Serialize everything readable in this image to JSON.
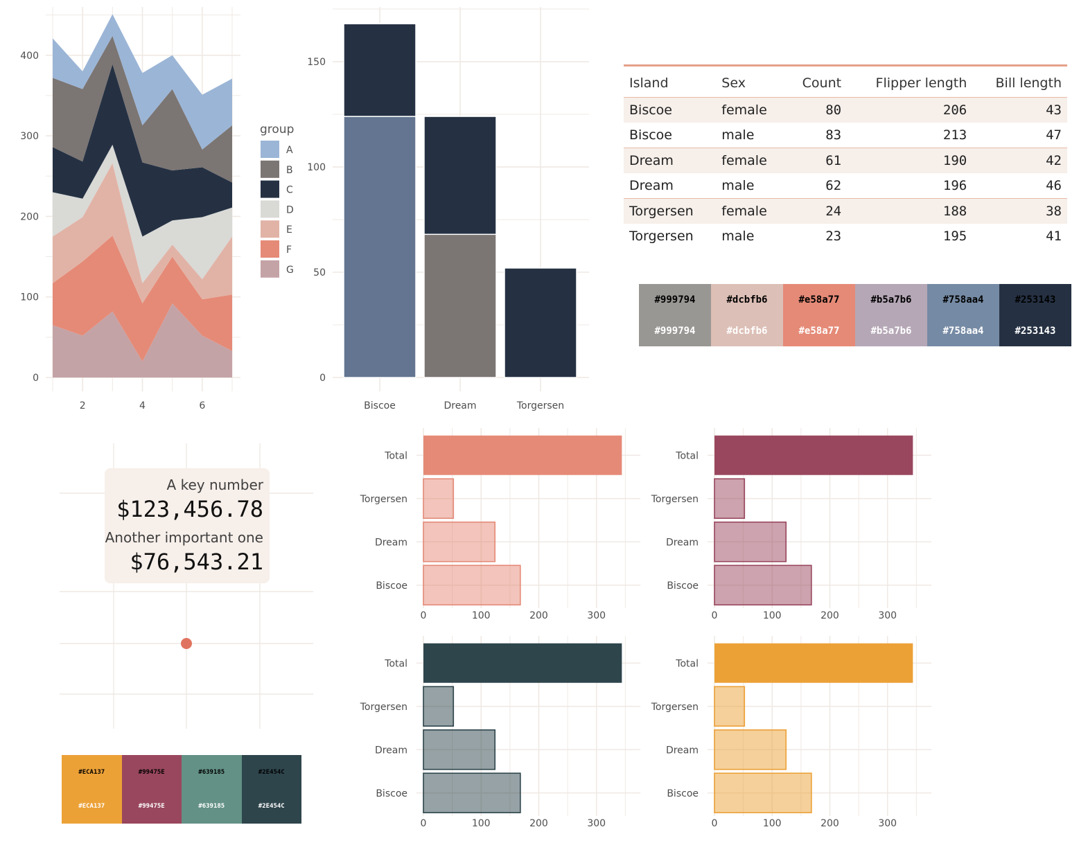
{
  "chart_data": [
    {
      "type": "area",
      "stacked": true,
      "x": [
        1,
        2,
        3,
        4,
        5,
        6,
        7
      ],
      "xticks": [
        2,
        4,
        6
      ],
      "yticks": [
        0,
        100,
        200,
        300,
        400
      ],
      "ylim": [
        0,
        460
      ],
      "legend": {
        "title": "group",
        "position": "right"
      },
      "series": [
        {
          "name": "G",
          "color": "#c4a3a6",
          "values": [
            65,
            52,
            82,
            20,
            92,
            52,
            33
          ]
        },
        {
          "name": "F",
          "color": "#e58a77",
          "values": [
            52,
            92,
            94,
            72,
            58,
            45,
            70
          ]
        },
        {
          "name": "E",
          "color": "#e1b3a6",
          "values": [
            58,
            55,
            90,
            25,
            15,
            25,
            72
          ]
        },
        {
          "name": "D",
          "color": "#d9d9d6",
          "values": [
            55,
            23,
            23,
            58,
            30,
            77,
            36
          ]
        },
        {
          "name": "C",
          "color": "#253143",
          "values": [
            56,
            46,
            100,
            92,
            62,
            62,
            31
          ]
        },
        {
          "name": "B",
          "color": "#7b7573",
          "values": [
            86,
            90,
            35,
            46,
            101,
            22,
            71
          ]
        },
        {
          "name": "A",
          "color": "#9bb5d6",
          "values": [
            49,
            22,
            27,
            65,
            42,
            68,
            58
          ]
        }
      ]
    },
    {
      "type": "bar",
      "stacked": true,
      "categories": [
        "Biscoe",
        "Dream",
        "Torgersen"
      ],
      "yticks": [
        0,
        50,
        100,
        150
      ],
      "ylim": [
        0,
        176
      ],
      "series": [
        {
          "color": "#637590",
          "values": [
            124,
            0,
            0
          ]
        },
        {
          "color": "#7b7573",
          "values": [
            0,
            68,
            0
          ]
        },
        {
          "color": "#253143",
          "values": [
            44,
            56,
            52
          ]
        }
      ]
    },
    {
      "type": "scatter",
      "points": [
        {
          "x": 0,
          "y": 0,
          "color": "#e0735f"
        }
      ],
      "annotations": [
        "A key number",
        "$123,456.78",
        "Another important one",
        "$76,543.21"
      ]
    },
    {
      "type": "bar",
      "orientation": "horizontal",
      "categories": [
        "Total",
        "Torgersen",
        "Dream",
        "Biscoe"
      ],
      "values": [
        344,
        52,
        124,
        168
      ],
      "xticks": [
        0,
        100,
        200,
        300
      ],
      "xlim": [
        0,
        358
      ],
      "fill": "#e58a77",
      "highlight": "Total"
    },
    {
      "type": "bar",
      "orientation": "horizontal",
      "categories": [
        "Total",
        "Torgersen",
        "Dream",
        "Biscoe"
      ],
      "values": [
        344,
        52,
        124,
        168
      ],
      "xticks": [
        0,
        100,
        200,
        300
      ],
      "xlim": [
        0,
        358
      ],
      "fill": "#99475e",
      "highlight": "Total"
    },
    {
      "type": "bar",
      "orientation": "horizontal",
      "categories": [
        "Total",
        "Torgersen",
        "Dream",
        "Biscoe"
      ],
      "values": [
        344,
        52,
        124,
        168
      ],
      "xticks": [
        0,
        100,
        200,
        300
      ],
      "xlim": [
        0,
        358
      ],
      "fill": "#2e454c",
      "highlight": "Total"
    },
    {
      "type": "bar",
      "orientation": "horizontal",
      "categories": [
        "Total",
        "Torgersen",
        "Dream",
        "Biscoe"
      ],
      "values": [
        344,
        52,
        124,
        168
      ],
      "xticks": [
        0,
        100,
        200,
        300
      ],
      "xlim": [
        0,
        358
      ],
      "fill": "#eca137",
      "highlight": "Total"
    }
  ],
  "table": {
    "headers": [
      "Island",
      "Sex",
      "Count",
      "Flipper length",
      "Bill length"
    ],
    "rows": [
      [
        "Biscoe",
        "female",
        "80",
        "206",
        "43"
      ],
      [
        "Biscoe",
        "male",
        "83",
        "213",
        "47"
      ],
      [
        "Dream",
        "female",
        "61",
        "190",
        "42"
      ],
      [
        "Dream",
        "male",
        "62",
        "196",
        "46"
      ],
      [
        "Torgersen",
        "female",
        "24",
        "188",
        "38"
      ],
      [
        "Torgersen",
        "male",
        "23",
        "195",
        "41"
      ]
    ]
  },
  "palette_main": [
    {
      "label": "#999794",
      "color": "#999794"
    },
    {
      "label": "#dcbfb6",
      "color": "#dcbfb6"
    },
    {
      "label": "#e58a77",
      "color": "#e58a77"
    },
    {
      "label": "#b5a7b6",
      "color": "#b5a7b6"
    },
    {
      "label": "#758aa4",
      "color": "#758aa4"
    },
    {
      "label": "#253143",
      "color": "#253143"
    }
  ],
  "palette_accent": [
    {
      "label": "#ECA137",
      "color": "#ECA137"
    },
    {
      "label": "#99475E",
      "color": "#99475E"
    },
    {
      "label": "#639185",
      "color": "#639185"
    },
    {
      "label": "#2E454C",
      "color": "#2E454C"
    }
  ],
  "key_numbers": {
    "label1": "A key number",
    "value1": "$123,456.78",
    "label2": "Another important one",
    "value2": "$76,543.21"
  }
}
